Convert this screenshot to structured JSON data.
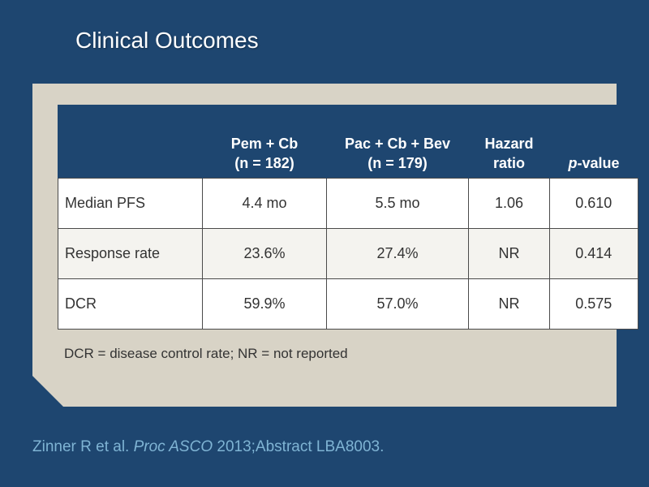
{
  "slide": {
    "title": "Clinical Outcomes"
  },
  "table": {
    "headers": [
      {
        "line1": "",
        "line2": ""
      },
      {
        "line1": "Pem + Cb",
        "line2": "(n = 182)"
      },
      {
        "line1": "Pac + Cb + Bev",
        "line2": "(n = 179)"
      },
      {
        "line1": "Hazard",
        "line2": "ratio"
      },
      {
        "p_prefix": "p",
        "suffix": "-value"
      }
    ],
    "rows": [
      {
        "label": "Median PFS",
        "values": [
          "4.4 mo",
          "5.5 mo",
          "1.06",
          "0.610"
        ]
      },
      {
        "label": "Response rate",
        "values": [
          "23.6%",
          "27.4%",
          "NR",
          "0.414"
        ]
      },
      {
        "label": "DCR",
        "values": [
          "59.9%",
          "57.0%",
          "NR",
          "0.575"
        ]
      }
    ]
  },
  "footnote": "DCR = disease control rate; NR = not reported",
  "citation": {
    "authors": "Zinner R et al.",
    "journal": "Proc ASCO",
    "details": "2013;Abstract LBA8003."
  },
  "colors": {
    "background": "#1e4670",
    "panel": "#d8d3c6",
    "header": "#1e4670",
    "citation": "#7fb4d4"
  }
}
